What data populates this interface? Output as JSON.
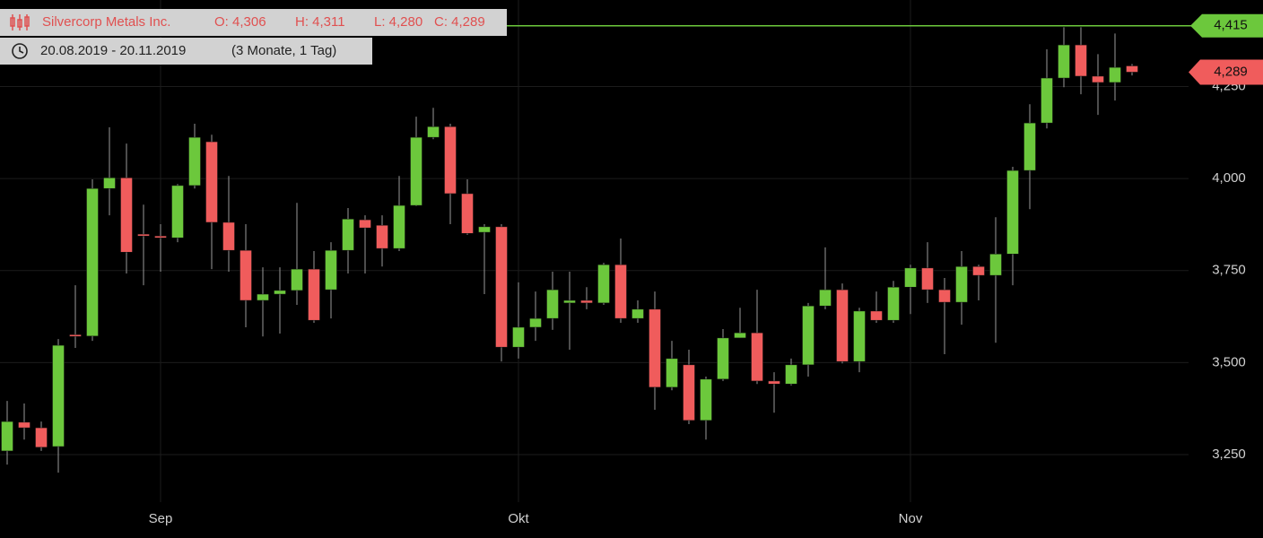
{
  "chart_data": {
    "type": "candlestick",
    "title": "Silvercorp Metals Inc.",
    "ohlc_header": [
      "O: 4,306",
      "H: 4,311",
      "L: 4,280",
      "C: 4,289"
    ],
    "period": "20.08.2019 - 20.11.2019",
    "period_note": "(3 Monate, 1 Tag)",
    "categories": [
      null,
      null,
      null,
      null,
      null,
      null,
      null,
      null,
      null,
      "Sep",
      null,
      null,
      null,
      null,
      null,
      null,
      null,
      null,
      null,
      null,
      null,
      null,
      null,
      null,
      null,
      null,
      null,
      null,
      null,
      null,
      "Okt",
      null,
      null,
      null,
      null,
      null,
      null,
      null,
      null,
      null,
      null,
      null,
      null,
      null,
      null,
      null,
      null,
      null,
      null,
      null,
      null,
      null,
      null,
      "Nov",
      null,
      null,
      null,
      null,
      null,
      null,
      null,
      null,
      null,
      null,
      null,
      null,
      null
    ],
    "open": [
      3.26,
      3.338,
      3.323,
      3.272,
      3.576,
      3.572,
      3.973,
      4.002,
      3.849,
      3.844,
      3.839,
      3.981,
      4.1,
      3.881,
      3.805,
      3.669,
      3.686,
      3.696,
      3.754,
      3.698,
      3.805,
      3.888,
      3.873,
      3.81,
      3.927,
      4.112,
      4.141,
      3.959,
      3.854,
      3.869,
      3.542,
      3.596,
      3.62,
      3.662,
      3.669,
      3.662,
      3.766,
      3.62,
      3.645,
      3.433,
      3.494,
      3.343,
      3.455,
      3.567,
      3.581,
      3.45,
      3.442,
      3.494,
      3.654,
      3.698,
      3.503,
      3.64,
      3.615,
      3.705,
      3.757,
      3.698,
      3.664,
      3.761,
      3.737,
      3.795,
      4.022,
      4.151,
      4.273,
      4.363,
      4.278,
      4.261,
      4.306
    ],
    "high": [
      3.396,
      3.389,
      3.34,
      3.564,
      3.71,
      3.998,
      4.139,
      4.095,
      3.929,
      3.876,
      3.985,
      4.149,
      4.119,
      4.007,
      3.876,
      3.759,
      3.759,
      3.934,
      3.803,
      3.827,
      3.92,
      3.9,
      3.9,
      4.007,
      4.168,
      4.192,
      4.149,
      3.998,
      3.876,
      3.876,
      3.718,
      3.693,
      3.747,
      3.747,
      3.705,
      3.771,
      3.837,
      3.669,
      3.693,
      3.559,
      3.535,
      3.462,
      3.591,
      3.649,
      3.698,
      3.474,
      3.511,
      3.662,
      3.813,
      3.715,
      3.649,
      3.693,
      3.722,
      3.766,
      3.827,
      3.73,
      3.803,
      3.766,
      3.895,
      4.032,
      4.202,
      4.351,
      4.411,
      4.411,
      4.338,
      4.394,
      4.311
    ],
    "low": [
      3.223,
      3.291,
      3.26,
      3.201,
      3.54,
      3.559,
      3.9,
      3.742,
      3.71,
      3.747,
      3.827,
      3.973,
      3.754,
      3.747,
      3.596,
      3.571,
      3.579,
      3.657,
      3.608,
      3.62,
      3.742,
      3.742,
      3.761,
      3.803,
      3.925,
      4.107,
      3.876,
      3.847,
      3.686,
      3.503,
      3.511,
      3.559,
      3.589,
      3.535,
      3.645,
      3.657,
      3.608,
      3.608,
      3.372,
      3.425,
      3.333,
      3.291,
      3.45,
      3.567,
      3.442,
      3.364,
      3.438,
      3.462,
      3.645,
      3.498,
      3.474,
      3.608,
      3.608,
      3.632,
      3.662,
      3.523,
      3.603,
      3.669,
      3.554,
      3.71,
      3.917,
      4.136,
      4.248,
      4.229,
      4.173,
      4.212,
      4.28
    ],
    "close": [
      3.34,
      3.323,
      3.27,
      3.547,
      3.572,
      3.973,
      4.002,
      3.8,
      3.844,
      3.839,
      3.981,
      4.112,
      3.881,
      3.805,
      3.669,
      3.686,
      3.696,
      3.754,
      3.615,
      3.805,
      3.89,
      3.866,
      3.81,
      3.927,
      4.112,
      4.141,
      3.959,
      3.851,
      3.869,
      3.542,
      3.596,
      3.62,
      3.698,
      3.669,
      3.662,
      3.766,
      3.62,
      3.645,
      3.433,
      3.511,
      3.343,
      3.455,
      3.567,
      3.581,
      3.45,
      3.442,
      3.494,
      3.654,
      3.698,
      3.503,
      3.64,
      3.615,
      3.705,
      3.757,
      3.698,
      3.664,
      3.761,
      3.737,
      3.795,
      4.022,
      4.151,
      4.273,
      4.363,
      4.278,
      4.261,
      4.302,
      4.289
    ],
    "up_color": "#6cc83c",
    "down_color": "#f05c5c",
    "ylim": [
      3.121,
      4.485
    ],
    "yticks": [
      {
        "value": 3.25,
        "label": "3,250"
      },
      {
        "value": 3.5,
        "label": "3,500"
      },
      {
        "value": 3.75,
        "label": "3,750"
      },
      {
        "value": 4.0,
        "label": "4,000"
      },
      {
        "value": 4.25,
        "label": "4,250"
      }
    ],
    "grid": true,
    "high_line": {
      "value": 4.415,
      "label": "4,415"
    },
    "last_price": {
      "value": 4.289,
      "label": "4,289"
    }
  }
}
